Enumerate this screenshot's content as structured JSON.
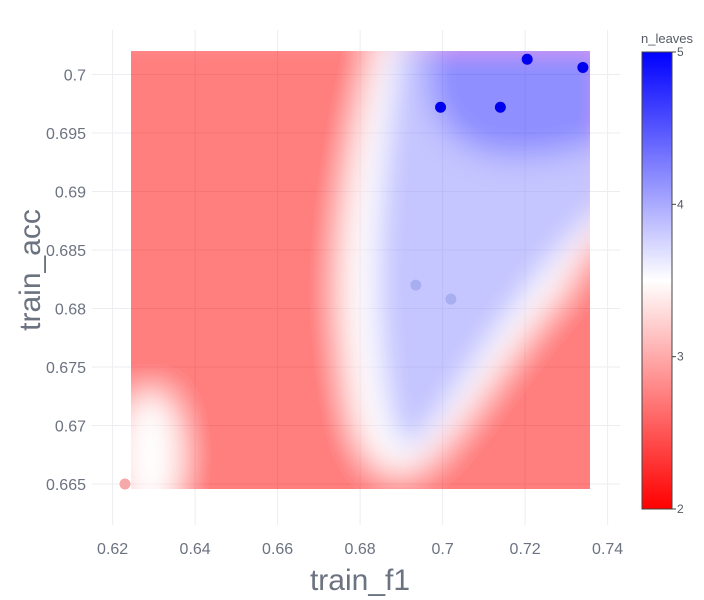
{
  "chart_data": {
    "type": "scatter",
    "xlabel": "train_f1",
    "ylabel": "train_acc",
    "xlim": [
      0.615,
      0.743
    ],
    "ylim": [
      0.6615,
      0.7038
    ],
    "x_ticks": [
      "0.62",
      "0.64",
      "0.66",
      "0.68",
      "0.7",
      "0.72",
      "0.74"
    ],
    "y_ticks": [
      "0.665",
      "0.67",
      "0.675",
      "0.68",
      "0.685",
      "0.69",
      "0.695",
      "0.7"
    ],
    "grid": true,
    "background": "contour",
    "colorbar": {
      "title": "n_leaves",
      "range": [
        2,
        5
      ],
      "ticks": [
        "2",
        "3",
        "4",
        "5"
      ],
      "colors": [
        "#ff0000",
        "#ffffff",
        "#0000ff"
      ],
      "placement": "right"
    },
    "points": [
      {
        "x": 0.623,
        "y": 0.665,
        "n_leaves": 3
      },
      {
        "x": 0.6935,
        "y": 0.682,
        "n_leaves": 4
      },
      {
        "x": 0.702,
        "y": 0.6808,
        "n_leaves": 4
      },
      {
        "x": 0.6995,
        "y": 0.6972,
        "n_leaves": 5
      },
      {
        "x": 0.714,
        "y": 0.6972,
        "n_leaves": 5
      },
      {
        "x": 0.7205,
        "y": 0.7013,
        "n_leaves": 5
      },
      {
        "x": 0.734,
        "y": 0.7006,
        "n_leaves": 5
      }
    ]
  }
}
